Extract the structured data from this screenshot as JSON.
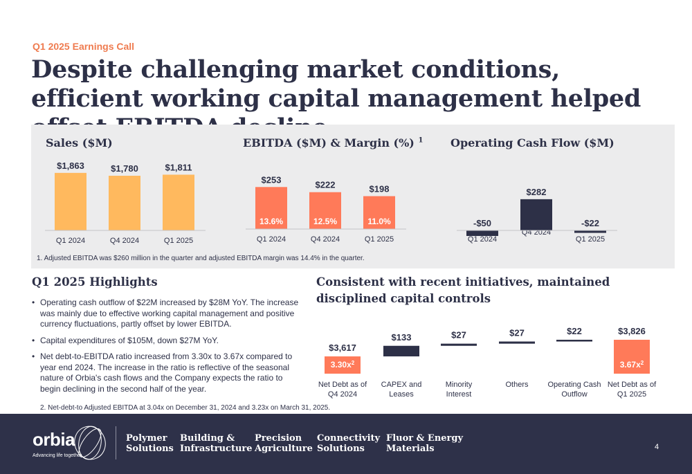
{
  "header": {
    "eyebrow": "Q1 2025 Earnings Call",
    "title": "Despite challenging market conditions, efficient working capital management helped offset EBITDA decline"
  },
  "colors": {
    "navy": "#2d3047",
    "orange": "#ff7a59",
    "yellow": "#ffb95e",
    "panel": "#ececed",
    "accent": "#ef7b4f"
  },
  "chart_data": [
    {
      "type": "bar",
      "title": "Sales ($M)",
      "categories": [
        "Q1 2024",
        "Q4 2024",
        "Q1 2025"
      ],
      "values": [
        1863,
        1780,
        1811
      ],
      "value_labels": [
        "$1,863",
        "$1,780",
        "$1,811"
      ],
      "color": "#ffb95e"
    },
    {
      "type": "bar",
      "title": "EBITDA ($M) & Margin (%)",
      "title_sup": "1",
      "categories": [
        "Q1 2024",
        "Q4 2024",
        "Q1 2025"
      ],
      "values": [
        253,
        222,
        198
      ],
      "value_labels": [
        "$253",
        "$222",
        "$198"
      ],
      "margin_labels": [
        "13.6%",
        "12.5%",
        "11.0%"
      ],
      "color": "#ff7a59"
    },
    {
      "type": "bar",
      "title": "Operating Cash Flow ($M)",
      "categories": [
        "Q1 2024",
        "Q4 2024",
        "Q1 2025"
      ],
      "values": [
        -50,
        282,
        -22
      ],
      "value_labels": [
        "-$50",
        "$282",
        "-$22"
      ],
      "color": "#2d3047"
    },
    {
      "type": "bar",
      "subtype": "waterfall",
      "title": "Consistent with recent initiatives, maintained disciplined capital controls",
      "categories": [
        "Net Debt as of Q4 2024",
        "CAPEX and Leases",
        "Minority Interest",
        "Others",
        "Operating Cash Outflow",
        "Net Debt as of Q1 2025"
      ],
      "values": [
        3617,
        133,
        27,
        27,
        22,
        3826
      ],
      "value_labels": [
        "$3,617",
        "$133",
        "$27",
        "$27",
        "$22",
        "$3,826"
      ],
      "ratio_labels": [
        "3.30x",
        "",
        "",
        "",
        "",
        "3.67x"
      ],
      "ratio_sup": "2"
    }
  ],
  "footnotes": {
    "note1": "1. Adjusted EBITDA was $260 million in the quarter and adjusted EBITDA margin was 14.4% in the quarter.",
    "note2": "2. Net-debt-to Adjusted EBITDA at 3.04x on December 31, 2024 and 3.23x on March 31, 2025."
  },
  "highlights": {
    "title": "Q1 2025 Highlights",
    "items": [
      "Operating cash outflow of $22M increased by $28M YoY. The increase was mainly due to effective working capital management and positive currency fluctuations, partly offset by lower EBITDA.",
      "Capital expenditures of $105M, down $27M YoY.",
      "Net debt-to-EBITDA ratio increased from 3.30x to 3.67x compared to year end 2024. The increase in the ratio is reflective of the seasonal nature of Orbia's cash flows and the Company expects the ratio to begin declining in the second half of the year."
    ]
  },
  "footer": {
    "logo": "orbia",
    "tagline": "Advancing life together",
    "businesses": [
      {
        "line1": "Polymer",
        "line2": "Solutions"
      },
      {
        "line1": "Building &",
        "line2": "Infrastructure"
      },
      {
        "line1": "Precision",
        "line2": "Agriculture"
      },
      {
        "line1": "Connectivity",
        "line2": "Solutions"
      },
      {
        "line1": "Fluor & Energy",
        "line2": "Materials"
      }
    ],
    "page_number": "4"
  }
}
